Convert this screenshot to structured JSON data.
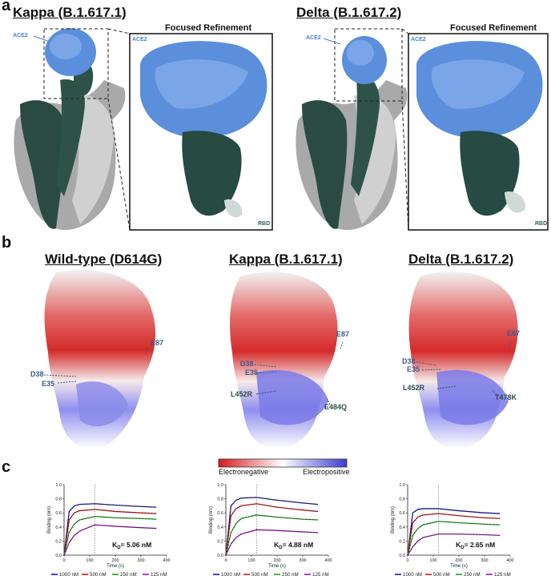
{
  "panel_a": {
    "letter": "a",
    "kappa_title": "Kappa (B.1.617.1)",
    "delta_title": "Delta (B.1.617.2)",
    "focused_title": "Focused Refinement",
    "ace2_label": "ACE2",
    "rbd_label": "RBD"
  },
  "panel_b": {
    "letter": "b",
    "wt_title": "Wild-type (D614G)",
    "kappa_title": "Kappa (B.1.617.1)",
    "delta_title": "Delta (B.1.617.2)",
    "wt_labels": {
      "e87": "E87",
      "d38": "D38",
      "e35": "E35"
    },
    "kappa_labels": {
      "e87": "E87",
      "d38": "D38",
      "e35": "E35",
      "l452r": "L452R",
      "e484q": "E484Q"
    },
    "delta_labels": {
      "e87": "E87",
      "d38": "D38",
      "e35": "E35",
      "l452r": "L452R",
      "t478k": "T478K"
    },
    "colorbar_left": "Electronegative",
    "colorbar_right": "Electropositive",
    "colors": {
      "negative": "#d7191c",
      "neutral": "#ffffff",
      "positive": "#3b3bd0"
    }
  },
  "panel_c": {
    "letter": "c",
    "ylabel": "Binding (nm)",
    "xlabel": "Time (s)",
    "legend": [
      "1000 nM",
      "500 nM",
      "250 nM",
      "125 nM"
    ],
    "series_colors": [
      "#1a1aa6",
      "#d01c1c",
      "#1e9e1e",
      "#9a1ab0"
    ],
    "kd": [
      "5.06 nM",
      "4.88 nM",
      "2.65 nM"
    ],
    "kd_prefix": "K",
    "kd_sub": "D",
    "kd_eq": "= "
  },
  "chart_data": [
    {
      "type": "line",
      "xlabel": "Time (s)",
      "ylabel": "Binding (nm)",
      "xlim": [
        0,
        400
      ],
      "ylim": [
        0,
        1.0
      ],
      "xticks": [
        0,
        100,
        200,
        300,
        400
      ],
      "yticks": [
        0.0,
        0.2,
        0.4,
        0.6,
        0.8,
        1.0
      ],
      "dissociation_start": 120,
      "series": [
        {
          "name": "1000 nM",
          "x": [
            0,
            20,
            40,
            60,
            120,
            200,
            300,
            360
          ],
          "y": [
            0.0,
            0.62,
            0.7,
            0.72,
            0.73,
            0.71,
            0.69,
            0.68
          ]
        },
        {
          "name": "500 nM",
          "x": [
            0,
            20,
            40,
            60,
            120,
            200,
            300,
            360
          ],
          "y": [
            0.0,
            0.5,
            0.6,
            0.63,
            0.65,
            0.62,
            0.6,
            0.59
          ]
        },
        {
          "name": "250 nM",
          "x": [
            0,
            20,
            40,
            60,
            120,
            200,
            300,
            360
          ],
          "y": [
            0.0,
            0.33,
            0.44,
            0.5,
            0.55,
            0.53,
            0.52,
            0.51
          ]
        },
        {
          "name": "125 nM",
          "x": [
            0,
            20,
            40,
            60,
            120,
            200,
            300,
            360
          ],
          "y": [
            0.0,
            0.18,
            0.28,
            0.34,
            0.43,
            0.41,
            0.39,
            0.38
          ]
        }
      ],
      "annotation": "KD= 5.06 nM"
    },
    {
      "type": "line",
      "xlabel": "Time (s)",
      "ylabel": "Binding (nm)",
      "xlim": [
        0,
        400
      ],
      "ylim": [
        0,
        1.0
      ],
      "xticks": [
        0,
        100,
        200,
        300,
        400
      ],
      "yticks": [
        0.0,
        0.2,
        0.4,
        0.6,
        0.8,
        1.0
      ],
      "dissociation_start": 120,
      "series": [
        {
          "name": "1000 nM",
          "x": [
            0,
            20,
            40,
            60,
            120,
            200,
            300,
            360
          ],
          "y": [
            0.0,
            0.7,
            0.78,
            0.81,
            0.82,
            0.78,
            0.74,
            0.72
          ]
        },
        {
          "name": "500 nM",
          "x": [
            0,
            20,
            40,
            60,
            120,
            200,
            300,
            360
          ],
          "y": [
            0.0,
            0.56,
            0.66,
            0.7,
            0.73,
            0.68,
            0.64,
            0.62
          ]
        },
        {
          "name": "250 nM",
          "x": [
            0,
            20,
            40,
            60,
            120,
            200,
            300,
            360
          ],
          "y": [
            0.0,
            0.32,
            0.45,
            0.52,
            0.57,
            0.54,
            0.51,
            0.5
          ]
        },
        {
          "name": "125 nM",
          "x": [
            0,
            20,
            40,
            60,
            120,
            200,
            300,
            360
          ],
          "y": [
            0.0,
            0.16,
            0.25,
            0.3,
            0.36,
            0.35,
            0.33,
            0.32
          ]
        }
      ],
      "annotation": "KD= 4.88 nM"
    },
    {
      "type": "line",
      "xlabel": "Time (s)",
      "ylabel": "Binding (nm)",
      "xlim": [
        0,
        400
      ],
      "ylim": [
        0,
        1.0
      ],
      "xticks": [
        0,
        100,
        200,
        300,
        400
      ],
      "yticks": [
        0.0,
        0.2,
        0.4,
        0.6,
        0.8,
        1.0
      ],
      "dissociation_start": 120,
      "series": [
        {
          "name": "1000 nM",
          "x": [
            0,
            20,
            40,
            60,
            120,
            200,
            300,
            360
          ],
          "y": [
            0.0,
            0.6,
            0.65,
            0.66,
            0.66,
            0.63,
            0.6,
            0.59
          ]
        },
        {
          "name": "500 nM",
          "x": [
            0,
            20,
            40,
            60,
            120,
            200,
            300,
            360
          ],
          "y": [
            0.0,
            0.46,
            0.54,
            0.57,
            0.59,
            0.56,
            0.53,
            0.52
          ]
        },
        {
          "name": "250 nM",
          "x": [
            0,
            20,
            40,
            60,
            120,
            200,
            300,
            360
          ],
          "y": [
            0.0,
            0.28,
            0.38,
            0.43,
            0.48,
            0.46,
            0.44,
            0.43
          ]
        },
        {
          "name": "125 nM",
          "x": [
            0,
            20,
            40,
            60,
            120,
            200,
            300,
            360
          ],
          "y": [
            0.0,
            0.12,
            0.2,
            0.25,
            0.3,
            0.3,
            0.29,
            0.28
          ]
        }
      ],
      "annotation": "KD= 2.65 nM"
    }
  ]
}
